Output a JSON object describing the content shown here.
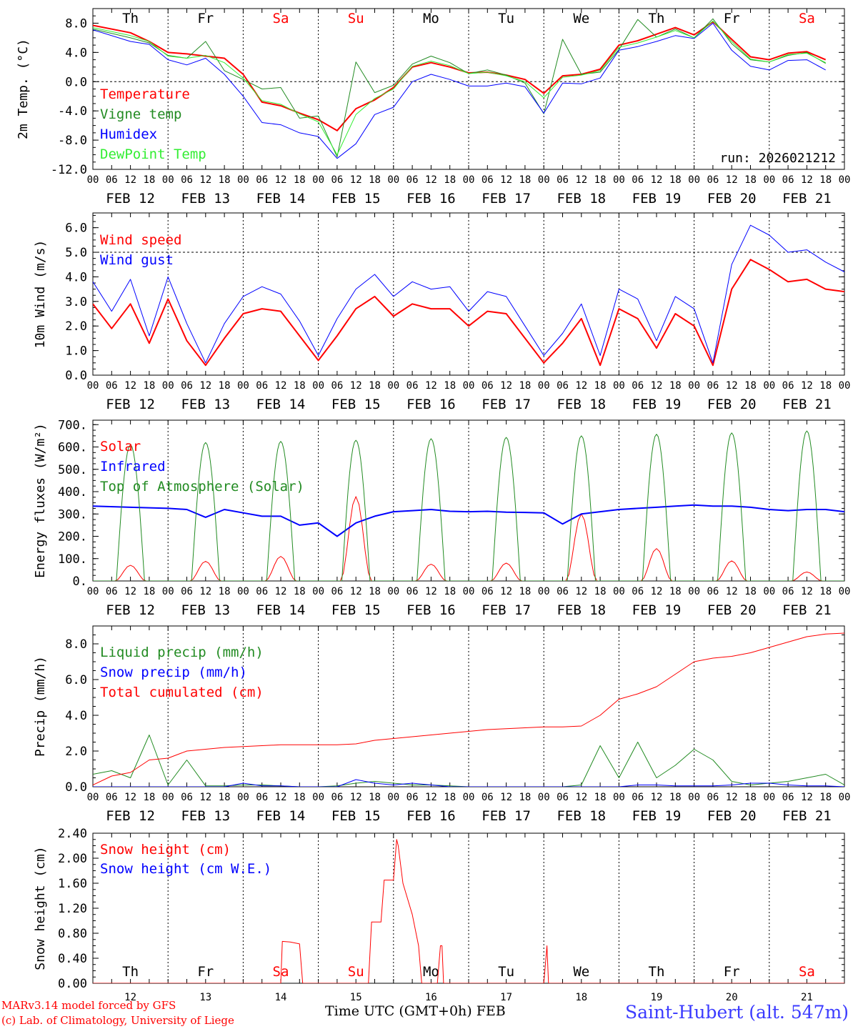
{
  "station": "Saint-Hubert (alt. 547m)",
  "credits": [
    "MARv3.14 model forced by GFS",
    "(c) Lab. of Climatology, University of Liege"
  ],
  "run_label": "run: 2026021212",
  "x_axis_title": "Time UTC (GMT+0h) FEB",
  "hour_ticks": [
    "00",
    "06",
    "12",
    "18"
  ],
  "day_labels": [
    "FEB 12",
    "FEB 13",
    "FEB 14",
    "FEB 15",
    "FEB 16",
    "FEB 17",
    "FEB 18",
    "FEB 19",
    "FEB 20",
    "FEB 21"
  ],
  "day_numbers": [
    "12",
    "13",
    "14",
    "15",
    "16",
    "17",
    "18",
    "19",
    "20",
    "21"
  ],
  "weekdays": [
    "Th",
    "Fr",
    "Sa",
    "Su",
    "Mo",
    "Tu",
    "We",
    "Th",
    "Fr",
    "Sa"
  ],
  "weekend_color": "#ff0000",
  "chart_data": [
    {
      "type": "line",
      "title": "2m Temp. (°C)",
      "ylabel": "2m Temp. (°C)",
      "ylim": [
        -12,
        10
      ],
      "yticks": [
        "8.0",
        "4.0",
        "0.0",
        "-4.0",
        "-8.0",
        "-12.0"
      ],
      "yticks_values": [
        8,
        4,
        0,
        -4,
        -8,
        -12
      ],
      "ref_lines": [
        0
      ],
      "x_hours": [
        0,
        12,
        18,
        24,
        30,
        36,
        42,
        48,
        54,
        60,
        66,
        72,
        78,
        84,
        90,
        96,
        102,
        108,
        114,
        120,
        126,
        132,
        138,
        144,
        150,
        156,
        162,
        168,
        174,
        180,
        186,
        192,
        198,
        204,
        210,
        216,
        222,
        228,
        234
      ],
      "series": [
        {
          "name": "Temperature",
          "color": "#ff0000",
          "width": 2,
          "values": [
            7.7,
            6.7,
            5.5,
            4.0,
            3.8,
            3.5,
            3.2,
            1.0,
            -2.8,
            -3.3,
            -4.3,
            -5.2,
            -6.7,
            -3.7,
            -2.5,
            -0.8,
            2.0,
            2.6,
            2.0,
            1.2,
            1.3,
            0.9,
            0.3,
            -1.6,
            0.8,
            1.0,
            1.7,
            5.0,
            5.6,
            6.5,
            7.4,
            6.4,
            8.2,
            5.8,
            3.4,
            3.0,
            3.9,
            4.1,
            3.0
          ]
        },
        {
          "name": "Vigne temp",
          "color": "#228b22",
          "width": 1,
          "values": [
            7.2,
            6.0,
            5.3,
            3.6,
            3.2,
            5.5,
            1.5,
            0.3,
            -1.0,
            -0.8,
            -5.0,
            -4.7,
            -10.3,
            2.7,
            -1.5,
            -0.5,
            2.4,
            3.5,
            2.6,
            1.1,
            1.6,
            0.9,
            -0.2,
            -4.4,
            5.8,
            1.0,
            1.3,
            4.4,
            8.5,
            6.1,
            7.2,
            6.0,
            8.6,
            5.2,
            3.0,
            2.7,
            3.6,
            4.0,
            2.5
          ]
        },
        {
          "name": "Humidex",
          "color": "#0000ff",
          "width": 1,
          "values": [
            7.1,
            5.5,
            5.1,
            3.0,
            2.3,
            3.2,
            1.0,
            -2.0,
            -5.6,
            -5.9,
            -7.0,
            -7.5,
            -10.5,
            -8.5,
            -4.5,
            -3.5,
            0.0,
            1.0,
            0.3,
            -0.6,
            -0.6,
            -0.2,
            -0.7,
            -4.3,
            -0.2,
            -0.3,
            0.5,
            4.3,
            4.8,
            5.5,
            6.3,
            5.9,
            8.0,
            4.3,
            2.1,
            1.6,
            2.9,
            3.0,
            1.6
          ]
        },
        {
          "name": "DewPoint Temp",
          "color": "#33ee33",
          "width": 1,
          "values": [
            7.4,
            6.3,
            5.5,
            3.5,
            3.2,
            3.6,
            2.6,
            0.5,
            -2.6,
            -3.1,
            -4.4,
            -5.5,
            -10.0,
            -4.5,
            -2.3,
            -1.0,
            2.1,
            2.8,
            2.2,
            1.1,
            1.3,
            0.8,
            0.0,
            -2.2,
            0.6,
            0.9,
            1.5,
            4.7,
            5.3,
            6.1,
            7.0,
            6.0,
            8.3,
            5.5,
            3.1,
            2.7,
            3.7,
            3.9,
            2.6
          ]
        }
      ]
    },
    {
      "type": "line",
      "title": "10m Wind (m/s)",
      "ylabel": "10m Wind (m/s)",
      "ylim": [
        0,
        6.6
      ],
      "yticks": [
        "6.0",
        "5.0",
        "4.0",
        "3.0",
        "2.0",
        "1.0",
        "0.0"
      ],
      "yticks_values": [
        6,
        5,
        4,
        3,
        2,
        1,
        0
      ],
      "ref_lines": [
        5
      ],
      "x_hours": [
        0,
        6,
        12,
        18,
        24,
        30,
        36,
        42,
        48,
        54,
        60,
        66,
        72,
        78,
        84,
        90,
        96,
        102,
        108,
        114,
        120,
        126,
        132,
        138,
        144,
        150,
        156,
        162,
        168,
        174,
        180,
        186,
        192,
        198,
        204,
        210,
        216,
        222,
        228,
        234,
        240
      ],
      "series": [
        {
          "name": "Wind speed",
          "color": "#ff0000",
          "width": 2,
          "values": [
            2.9,
            1.9,
            2.9,
            1.3,
            3.1,
            1.4,
            0.4,
            1.5,
            2.5,
            2.7,
            2.6,
            1.6,
            0.6,
            1.6,
            2.7,
            3.2,
            2.4,
            2.9,
            2.7,
            2.7,
            2.0,
            2.6,
            2.5,
            1.5,
            0.5,
            1.3,
            2.3,
            0.4,
            2.7,
            2.3,
            1.1,
            2.5,
            2.0,
            0.4,
            3.5,
            4.7,
            4.3,
            3.8,
            3.9,
            3.5,
            3.4
          ]
        },
        {
          "name": "Wind gust",
          "color": "#0000ff",
          "width": 1,
          "values": [
            3.8,
            2.6,
            3.9,
            1.6,
            4.0,
            2.1,
            0.5,
            2.1,
            3.2,
            3.6,
            3.3,
            2.2,
            0.8,
            2.3,
            3.5,
            4.1,
            3.2,
            3.8,
            3.5,
            3.6,
            2.6,
            3.4,
            3.2,
            2.0,
            0.8,
            1.7,
            2.9,
            0.8,
            3.5,
            3.1,
            1.4,
            3.2,
            2.7,
            0.5,
            4.5,
            6.1,
            5.7,
            5.0,
            5.1,
            4.6,
            4.2
          ]
        }
      ]
    },
    {
      "type": "line",
      "title": "Energy fluxes (W/m2)",
      "ylabel": "Energy fluxes (W/m²)",
      "ylim": [
        0,
        720
      ],
      "yticks": [
        "700.",
        "600.",
        "500.",
        "400.",
        "300.",
        "200.",
        "100.",
        "0."
      ],
      "yticks_values": [
        700,
        600,
        500,
        400,
        300,
        200,
        100,
        0
      ],
      "ref_lines": [],
      "solar_peaks": [
        70,
        88,
        110,
        378,
        75,
        80,
        300,
        145,
        90,
        40
      ],
      "toa_peaks": [
        610,
        620,
        625,
        630,
        637,
        643,
        650,
        657,
        663,
        672
      ],
      "x_hours": [
        0,
        12,
        24,
        30,
        36,
        42,
        48,
        54,
        60,
        66,
        72,
        78,
        84,
        90,
        96,
        102,
        108,
        114,
        120,
        126,
        132,
        138,
        144,
        150,
        156,
        162,
        168,
        174,
        180,
        186,
        192,
        198,
        204,
        210,
        216,
        222,
        228,
        234,
        240
      ],
      "series": [
        {
          "name": "Solar",
          "color": "#ff0000",
          "width": 1,
          "values": []
        },
        {
          "name": "Infrared",
          "color": "#0000ff",
          "width": 2,
          "values": [
            335,
            330,
            325,
            320,
            285,
            320,
            305,
            290,
            290,
            250,
            260,
            200,
            260,
            290,
            310,
            315,
            320,
            312,
            310,
            312,
            308,
            307,
            305,
            255,
            300,
            310,
            320,
            325,
            330,
            335,
            340,
            335,
            335,
            330,
            320,
            315,
            320,
            320,
            310
          ]
        },
        {
          "name": "Top of Atmosphere (Solar)",
          "color": "#228b22",
          "width": 1,
          "values": []
        }
      ]
    },
    {
      "type": "line",
      "title": "Precip (mm/h)",
      "ylabel": "Precip (mm/h)",
      "ylim": [
        0,
        9
      ],
      "yticks": [
        "8.0",
        "6.0",
        "4.0",
        "2.0",
        "0.0"
      ],
      "yticks_values": [
        8,
        6,
        4,
        2,
        0
      ],
      "ref_lines": [],
      "x_hours": [
        0,
        6,
        12,
        18,
        24,
        30,
        36,
        42,
        48,
        54,
        60,
        66,
        72,
        78,
        84,
        90,
        96,
        102,
        108,
        114,
        120,
        126,
        132,
        138,
        144,
        150,
        156,
        162,
        168,
        174,
        180,
        186,
        192,
        198,
        204,
        210,
        216,
        222,
        228,
        234,
        240
      ],
      "series": [
        {
          "name": "Liquid precip (mm/h)",
          "color": "#228b22",
          "width": 1,
          "values": [
            0.7,
            0.9,
            0.5,
            2.9,
            0.1,
            1.5,
            0.05,
            0.05,
            0.1,
            0.1,
            0.05,
            0,
            0,
            0.05,
            0.2,
            0.3,
            0.2,
            0.1,
            0.1,
            0.05,
            0,
            0,
            0,
            0,
            0,
            0,
            0.1,
            2.3,
            0.5,
            2.5,
            0.5,
            1.2,
            2.1,
            1.5,
            0.3,
            0.1,
            0.2,
            0.3,
            0.5,
            0.7,
            0.1
          ]
        },
        {
          "name": "Snow precip (mm/h)",
          "color": "#0000ff",
          "width": 1,
          "values": [
            0,
            0,
            0,
            0,
            0,
            0,
            0,
            0,
            0.2,
            0.05,
            0.05,
            0,
            0,
            0,
            0.4,
            0.2,
            0.1,
            0.2,
            0.1,
            0,
            0,
            0,
            0,
            0,
            0,
            0,
            0,
            0,
            0,
            0.1,
            0.1,
            0.05,
            0.05,
            0.05,
            0.1,
            0.2,
            0.2,
            0.1,
            0.05,
            0.05,
            0
          ]
        },
        {
          "name": "Total cumulated (cm)",
          "color": "#ff0000",
          "width": 1,
          "values": [
            0.1,
            0.6,
            0.8,
            1.5,
            1.6,
            2.0,
            2.1,
            2.2,
            2.25,
            2.3,
            2.35,
            2.35,
            2.35,
            2.35,
            2.4,
            2.6,
            2.7,
            2.8,
            2.9,
            3.0,
            3.1,
            3.2,
            3.25,
            3.3,
            3.35,
            3.35,
            3.4,
            4.0,
            4.9,
            5.2,
            5.6,
            6.3,
            7.0,
            7.2,
            7.3,
            7.5,
            7.8,
            8.1,
            8.4,
            8.55,
            8.6
          ]
        }
      ]
    },
    {
      "type": "line",
      "title": "Snow height (cm)",
      "ylabel": "Snow height (cm)",
      "ylim": [
        0,
        2.4
      ],
      "yticks": [
        "2.40",
        "2.00",
        "1.60",
        "1.20",
        "0.80",
        "0.40",
        "0.00"
      ],
      "yticks_values": [
        2.4,
        2.0,
        1.6,
        1.2,
        0.8,
        0.4,
        0.0
      ],
      "ref_lines": [],
      "x_hours": [
        0,
        60,
        60.5,
        63,
        66,
        67,
        84,
        88,
        89,
        92,
        93,
        96,
        97,
        97.5,
        99,
        102,
        104,
        105,
        110,
        111,
        111.5,
        112,
        144,
        145,
        145.5,
        146,
        240
      ],
      "series": [
        {
          "name": "Snow height (cm)",
          "color": "#ff0000",
          "width": 1,
          "values": [
            0,
            0,
            0.67,
            0.66,
            0.63,
            0,
            0,
            0,
            0.98,
            0.98,
            1.65,
            1.65,
            2.3,
            2.2,
            1.6,
            1.1,
            0.6,
            0,
            0,
            0.6,
            0.6,
            0,
            0,
            0.6,
            0,
            0,
            0
          ]
        },
        {
          "name": "Snow height (cm W.E.)",
          "color": "#0000ff",
          "width": 1,
          "values": []
        }
      ]
    }
  ]
}
